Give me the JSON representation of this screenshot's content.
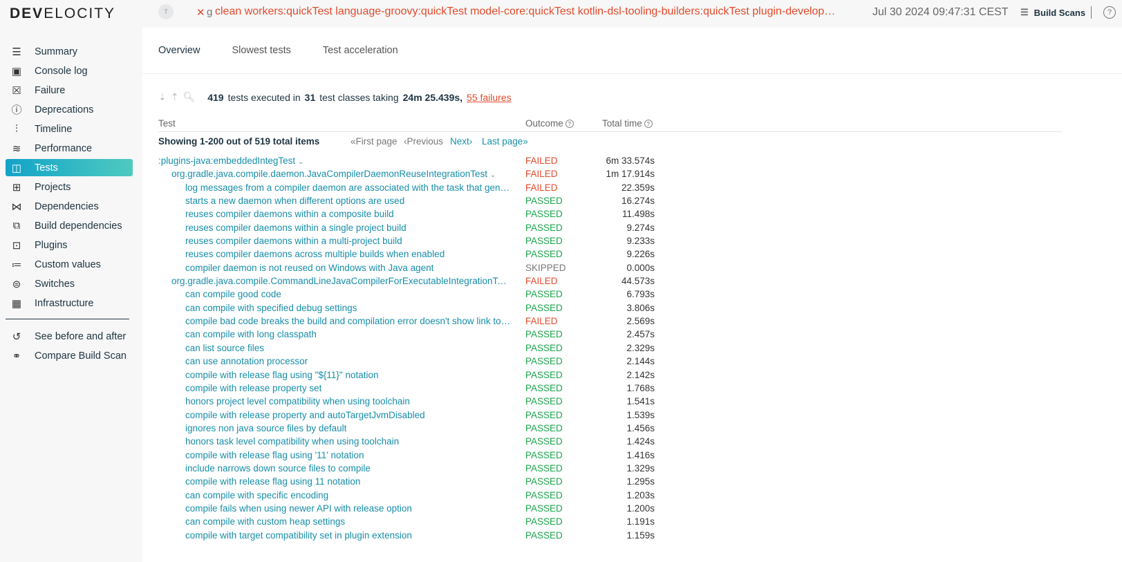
{
  "header": {
    "logo": "DEVELOCITY",
    "avatar": "T",
    "status_icon": "x-icon",
    "g_label": "g",
    "tasks": "clean workers:quickTest language-groovy:quickTest model-core:quickTest kotlin-dsl-tooling-builders:quickTest plugin-development:quickTest",
    "date": "Jul 30 2024 09:47:31 CEST",
    "build_scans": "Build Scans",
    "help": "?"
  },
  "sidebar": {
    "items": [
      {
        "label": "Summary",
        "icon": "list-icon",
        "glyph": "☰"
      },
      {
        "label": "Console log",
        "icon": "console-icon",
        "glyph": "▣"
      },
      {
        "label": "Failure",
        "icon": "failure-icon",
        "glyph": "☒"
      },
      {
        "label": "Deprecations",
        "icon": "warning-icon",
        "glyph": "ⓘ"
      },
      {
        "label": "Timeline",
        "icon": "timeline-icon",
        "glyph": "⫶"
      },
      {
        "label": "Performance",
        "icon": "performance-icon",
        "glyph": "≋"
      },
      {
        "label": "Tests",
        "icon": "tests-icon",
        "glyph": "◫",
        "active": true
      },
      {
        "label": "Projects",
        "icon": "projects-icon",
        "glyph": "⊞"
      },
      {
        "label": "Dependencies",
        "icon": "dependencies-icon",
        "glyph": "⋈"
      },
      {
        "label": "Build dependencies",
        "icon": "build-dependencies-icon",
        "glyph": "⧉"
      },
      {
        "label": "Plugins",
        "icon": "plugins-icon",
        "glyph": "⊡"
      },
      {
        "label": "Custom values",
        "icon": "custom-values-icon",
        "glyph": "≔"
      },
      {
        "label": "Switches",
        "icon": "switches-icon",
        "glyph": "⊜"
      },
      {
        "label": "Infrastructure",
        "icon": "infrastructure-icon",
        "glyph": "▦"
      }
    ],
    "extra": [
      {
        "label": "See before and after",
        "icon": "history-icon",
        "glyph": "↺"
      },
      {
        "label": "Compare Build Scan",
        "icon": "compare-icon",
        "glyph": "⚭"
      }
    ]
  },
  "tabs": [
    {
      "label": "Overview",
      "active": true
    },
    {
      "label": "Slowest tests"
    },
    {
      "label": "Test acceleration"
    }
  ],
  "summary": {
    "count": "419",
    "t1": "tests executed in",
    "classes": "31",
    "t2": "test classes taking",
    "duration": "24m 25.439s,",
    "failures": "55 failures"
  },
  "table": {
    "col_test": "Test",
    "col_outcome": "Outcome",
    "col_time": "Total time"
  },
  "pager": {
    "showing": "Showing 1-200 out of 519 total items",
    "first": "«First page",
    "previous": "‹Previous",
    "next": "Next›",
    "last": "Last page»"
  },
  "colors": {
    "accent": "#12a3c9",
    "failed": "#e24a2c",
    "passed": "#1aa54a",
    "link": "#178ea8"
  },
  "rows": [
    {
      "level": 0,
      "name": ":plugins-java:embeddedIntegTest",
      "chevron": true,
      "outcome": "FAILED",
      "time": "6m 33.574s"
    },
    {
      "level": 1,
      "name": "org.gradle.java.compile.daemon.JavaCompilerDaemonReuseIntegrationTest",
      "chevron": true,
      "outcome": "FAILED",
      "time": "1m 17.914s"
    },
    {
      "level": 2,
      "name": "log messages from a compiler daemon are associated with the task that generated them",
      "outcome": "FAILED",
      "time": "22.359s"
    },
    {
      "level": 2,
      "name": "starts a new daemon when different options are used",
      "outcome": "PASSED",
      "time": "16.274s"
    },
    {
      "level": 2,
      "name": "reuses compiler daemons within a composite build",
      "outcome": "PASSED",
      "time": "11.498s"
    },
    {
      "level": 2,
      "name": "reuses compiler daemons within a single project build",
      "outcome": "PASSED",
      "time": "9.274s"
    },
    {
      "level": 2,
      "name": "reuses compiler daemons within a multi-project build",
      "outcome": "PASSED",
      "time": "9.233s"
    },
    {
      "level": 2,
      "name": "reuses compiler daemons across multiple builds when enabled",
      "outcome": "PASSED",
      "time": "9.226s"
    },
    {
      "level": 2,
      "name": "compiler daemon is not reused on Windows with Java agent",
      "outcome": "SKIPPED",
      "time": "0.000s"
    },
    {
      "level": 1,
      "name": "org.gradle.java.compile.CommandLineJavaCompilerForExecutableIntegrationTest",
      "chevron": true,
      "outcome": "FAILED",
      "time": "44.573s"
    },
    {
      "level": 2,
      "name": "can compile good code",
      "outcome": "PASSED",
      "time": "6.793s"
    },
    {
      "level": 2,
      "name": "can compile with specified debug settings",
      "outcome": "PASSED",
      "time": "3.806s"
    },
    {
      "level": 2,
      "name": "compile bad code breaks the build and compilation error doesn't show link to help",
      "outcome": "FAILED",
      "time": "2.569s"
    },
    {
      "level": 2,
      "name": "can compile with long classpath",
      "outcome": "PASSED",
      "time": "2.457s"
    },
    {
      "level": 2,
      "name": "can list source files",
      "outcome": "PASSED",
      "time": "2.329s"
    },
    {
      "level": 2,
      "name": "can use annotation processor",
      "outcome": "PASSED",
      "time": "2.144s"
    },
    {
      "level": 2,
      "name": "compile with release flag using \"${11}\" notation",
      "outcome": "PASSED",
      "time": "2.142s"
    },
    {
      "level": 2,
      "name": "compile with release property set",
      "outcome": "PASSED",
      "time": "1.768s"
    },
    {
      "level": 2,
      "name": "honors project level compatibility when using toolchain",
      "outcome": "PASSED",
      "time": "1.541s"
    },
    {
      "level": 2,
      "name": "compile with release property and autoTargetJvmDisabled",
      "outcome": "PASSED",
      "time": "1.539s"
    },
    {
      "level": 2,
      "name": "ignores non java source files by default",
      "outcome": "PASSED",
      "time": "1.456s"
    },
    {
      "level": 2,
      "name": "honors task level compatibility when using toolchain",
      "outcome": "PASSED",
      "time": "1.424s"
    },
    {
      "level": 2,
      "name": "compile with release flag using '11' notation",
      "outcome": "PASSED",
      "time": "1.416s"
    },
    {
      "level": 2,
      "name": "include narrows down source files to compile",
      "outcome": "PASSED",
      "time": "1.329s"
    },
    {
      "level": 2,
      "name": "compile with release flag using 11 notation",
      "outcome": "PASSED",
      "time": "1.295s"
    },
    {
      "level": 2,
      "name": "can compile with specific encoding",
      "outcome": "PASSED",
      "time": "1.203s"
    },
    {
      "level": 2,
      "name": "compile fails when using newer API with release option",
      "outcome": "PASSED",
      "time": "1.200s"
    },
    {
      "level": 2,
      "name": "can compile with custom heap settings",
      "outcome": "PASSED",
      "time": "1.191s"
    },
    {
      "level": 2,
      "name": "compile with target compatibility set in plugin extension",
      "outcome": "PASSED",
      "time": "1.159s"
    }
  ]
}
